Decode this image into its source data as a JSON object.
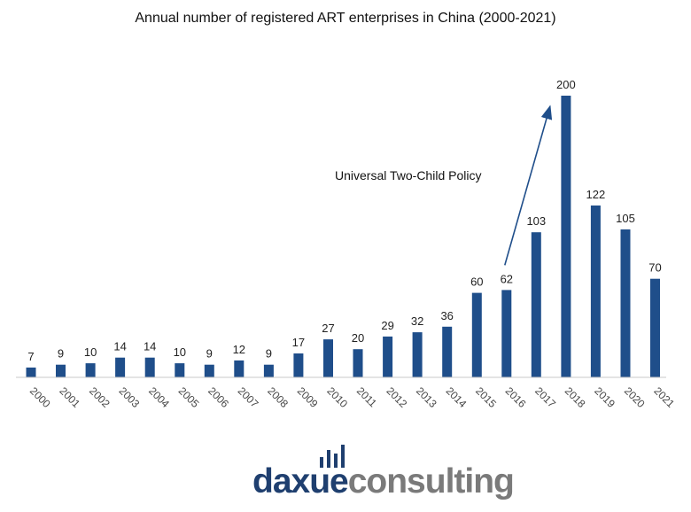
{
  "chart_data": {
    "type": "bar",
    "title": "Annual number of registered ART enterprises in China (2000-2021)",
    "categories": [
      "2000",
      "2001",
      "2002",
      "2003",
      "2004",
      "2005",
      "2006",
      "2007",
      "2008",
      "2009",
      "2010",
      "2011",
      "2012",
      "2013",
      "2014",
      "2015",
      "2016",
      "2017",
      "2018",
      "2019",
      "2020",
      "2021"
    ],
    "values": [
      7,
      9,
      10,
      14,
      14,
      10,
      9,
      12,
      9,
      17,
      27,
      20,
      29,
      32,
      36,
      60,
      62,
      103,
      200,
      122,
      105,
      70
    ],
    "xlabel": "",
    "ylabel": "",
    "ylim": [
      0,
      200
    ],
    "grid": false,
    "legend": "none",
    "bar_color": "#1f4e8a",
    "annotation": {
      "text": "Universal Two-Child Policy",
      "arrow_from_category": "2016",
      "arrow_to_category": "2018"
    }
  },
  "logo": {
    "part1": "daxue",
    "part2": "consulting"
  }
}
